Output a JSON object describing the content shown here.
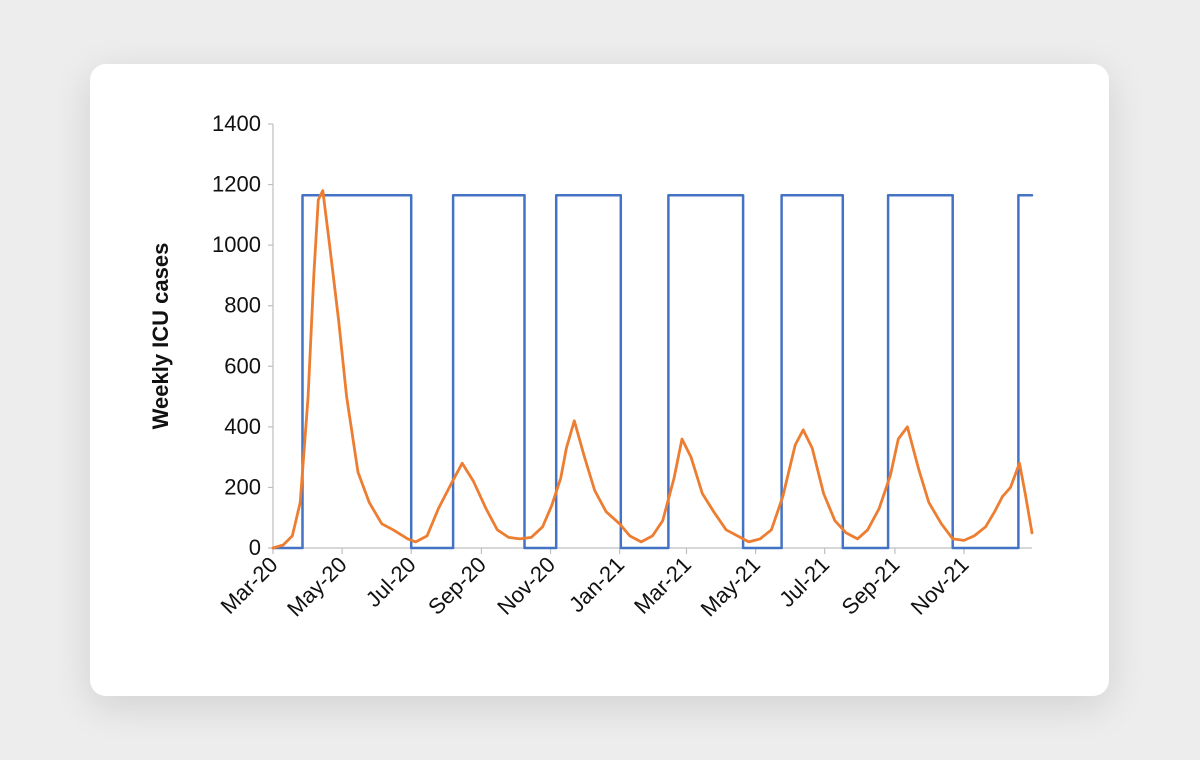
{
  "chart_data": {
    "type": "line",
    "title": "",
    "xlabel": "",
    "ylabel": "Weekly ICU cases",
    "ylim": [
      0,
      1400
    ],
    "yticks": [
      0,
      200,
      400,
      600,
      800,
      1000,
      1200,
      1400
    ],
    "xlim": [
      "2020-03-01",
      "2021-12-31"
    ],
    "xtick_labels": [
      "Mar-20",
      "May-20",
      "Jul-20",
      "Sep-20",
      "Nov-20",
      "Jan-21",
      "Mar-21",
      "May-21",
      "Jul-21",
      "Sep-21",
      "Nov-21"
    ],
    "xtick_dates": [
      "2020-03-01",
      "2020-05-01",
      "2020-07-01",
      "2020-09-01",
      "2020-11-01",
      "2021-01-01",
      "2021-03-01",
      "2021-05-01",
      "2021-07-01",
      "2021-09-01",
      "2021-11-01"
    ],
    "grid": false,
    "legend": "none",
    "series": [
      {
        "color": "#4472c4",
        "style": "step",
        "x": [
          "2020-03-01",
          "2020-03-27",
          "2020-03-27",
          "2020-07-01",
          "2020-07-01",
          "2020-08-07",
          "2020-08-07",
          "2020-10-09",
          "2020-10-09",
          "2020-11-06",
          "2020-11-06",
          "2021-01-02",
          "2021-01-02",
          "2021-02-13",
          "2021-02-13",
          "2021-04-20",
          "2021-04-20",
          "2021-05-24",
          "2021-05-24",
          "2021-07-17",
          "2021-07-17",
          "2021-08-26",
          "2021-08-26",
          "2021-10-22",
          "2021-10-22",
          "2021-12-19",
          "2021-12-19",
          "2021-12-31"
        ],
        "values": [
          0,
          0,
          1165,
          1165,
          0,
          0,
          1165,
          1165,
          0,
          0,
          1165,
          1165,
          0,
          0,
          1165,
          1165,
          0,
          0,
          1165,
          1165,
          0,
          0,
          1165,
          1165,
          0,
          0,
          1165,
          1165
        ]
      },
      {
        "color": "#ed7d31",
        "style": "line",
        "x": [
          "2020-03-01",
          "2020-03-10",
          "2020-03-18",
          "2020-03-25",
          "2020-04-01",
          "2020-04-06",
          "2020-04-10",
          "2020-04-14",
          "2020-04-20",
          "2020-04-28",
          "2020-05-05",
          "2020-05-15",
          "2020-05-25",
          "2020-06-05",
          "2020-06-15",
          "2020-06-28",
          "2020-07-05",
          "2020-07-15",
          "2020-07-25",
          "2020-08-05",
          "2020-08-15",
          "2020-08-25",
          "2020-09-05",
          "2020-09-15",
          "2020-09-25",
          "2020-10-05",
          "2020-10-15",
          "2020-10-25",
          "2020-11-02",
          "2020-11-10",
          "2020-11-15",
          "2020-11-22",
          "2020-12-01",
          "2020-12-10",
          "2020-12-20",
          "2021-01-01",
          "2021-01-10",
          "2021-01-20",
          "2021-01-30",
          "2021-02-08",
          "2021-02-18",
          "2021-02-25",
          "2021-03-05",
          "2021-03-15",
          "2021-03-25",
          "2021-04-05",
          "2021-04-15",
          "2021-04-25",
          "2021-05-05",
          "2021-05-15",
          "2021-05-25",
          "2021-06-05",
          "2021-06-12",
          "2021-06-20",
          "2021-06-30",
          "2021-07-10",
          "2021-07-20",
          "2021-07-30",
          "2021-08-08",
          "2021-08-18",
          "2021-08-28",
          "2021-09-04",
          "2021-09-12",
          "2021-09-22",
          "2021-10-01",
          "2021-10-12",
          "2021-10-22",
          "2021-11-01",
          "2021-11-10",
          "2021-11-20",
          "2021-11-28",
          "2021-12-05",
          "2021-12-12",
          "2021-12-16",
          "2021-12-20",
          "2021-12-25",
          "2021-12-31"
        ],
        "values": [
          0,
          10,
          40,
          150,
          500,
          900,
          1150,
          1180,
          1000,
          750,
          500,
          250,
          150,
          80,
          60,
          30,
          20,
          40,
          130,
          210,
          280,
          220,
          130,
          60,
          35,
          30,
          35,
          70,
          140,
          230,
          330,
          420,
          300,
          190,
          120,
          80,
          40,
          20,
          40,
          90,
          230,
          360,
          300,
          180,
          120,
          60,
          40,
          20,
          30,
          60,
          170,
          340,
          390,
          330,
          180,
          90,
          50,
          30,
          60,
          130,
          240,
          360,
          400,
          260,
          150,
          80,
          30,
          25,
          40,
          70,
          120,
          170,
          200,
          240,
          280,
          180,
          50
        ]
      }
    ]
  }
}
